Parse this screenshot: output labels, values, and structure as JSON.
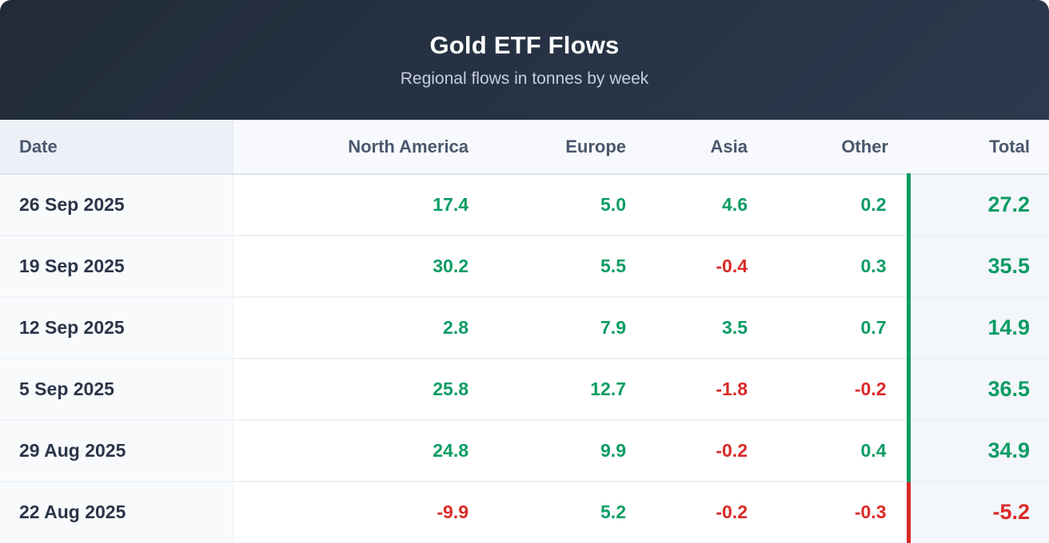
{
  "header": {
    "title": "Gold ETF Flows",
    "subtitle": "Regional flows in tonnes by week"
  },
  "table": {
    "columns": [
      "Date",
      "North America",
      "Europe",
      "Asia",
      "Other",
      "Total"
    ],
    "rows": [
      {
        "date": "26 Sep 2025",
        "values": [
          "17.4",
          "5.0",
          "4.6",
          "0.2"
        ],
        "total": "27.2"
      },
      {
        "date": "19 Sep 2025",
        "values": [
          "30.2",
          "5.5",
          "-0.4",
          "0.3"
        ],
        "total": "35.5"
      },
      {
        "date": "12 Sep 2025",
        "values": [
          "2.8",
          "7.9",
          "3.5",
          "0.7"
        ],
        "total": "14.9"
      },
      {
        "date": "5 Sep 2025",
        "values": [
          "25.8",
          "12.7",
          "-1.8",
          "-0.2"
        ],
        "total": "36.5"
      },
      {
        "date": "29 Aug 2025",
        "values": [
          "24.8",
          "9.9",
          "-0.2",
          "0.4"
        ],
        "total": "34.9"
      },
      {
        "date": "22 Aug 2025",
        "values": [
          "-9.9",
          "5.2",
          "-0.2",
          "-0.3"
        ],
        "total": "-5.2"
      }
    ]
  },
  "chart_data": {
    "type": "table",
    "title": "Gold ETF Flows",
    "subtitle": "Regional flows in tonnes by week",
    "unit": "tonnes",
    "columns": [
      "Date",
      "North America",
      "Europe",
      "Asia",
      "Other",
      "Total"
    ],
    "rows": [
      [
        "26 Sep 2025",
        17.4,
        5.0,
        4.6,
        0.2,
        27.2
      ],
      [
        "19 Sep 2025",
        30.2,
        5.5,
        -0.4,
        0.3,
        35.5
      ],
      [
        "12 Sep 2025",
        2.8,
        7.9,
        3.5,
        0.7,
        14.9
      ],
      [
        "5 Sep 2025",
        25.8,
        12.7,
        -1.8,
        -0.2,
        36.5
      ],
      [
        "29 Aug 2025",
        24.8,
        9.9,
        -0.2,
        0.4,
        34.9
      ],
      [
        "22 Aug 2025",
        -9.9,
        5.2,
        -0.2,
        -0.3,
        -5.2
      ]
    ],
    "value_color_rule": "positive values green, negative values red; total column carries a colored left accent bar matching the sign of the total"
  },
  "colors": {
    "positive": "#0d9c64",
    "negative": "#da2a27",
    "subtitle_text": "#c6cfdb",
    "header_bg_start": "#212b39",
    "header_bg_end": "#2c3a4e"
  }
}
